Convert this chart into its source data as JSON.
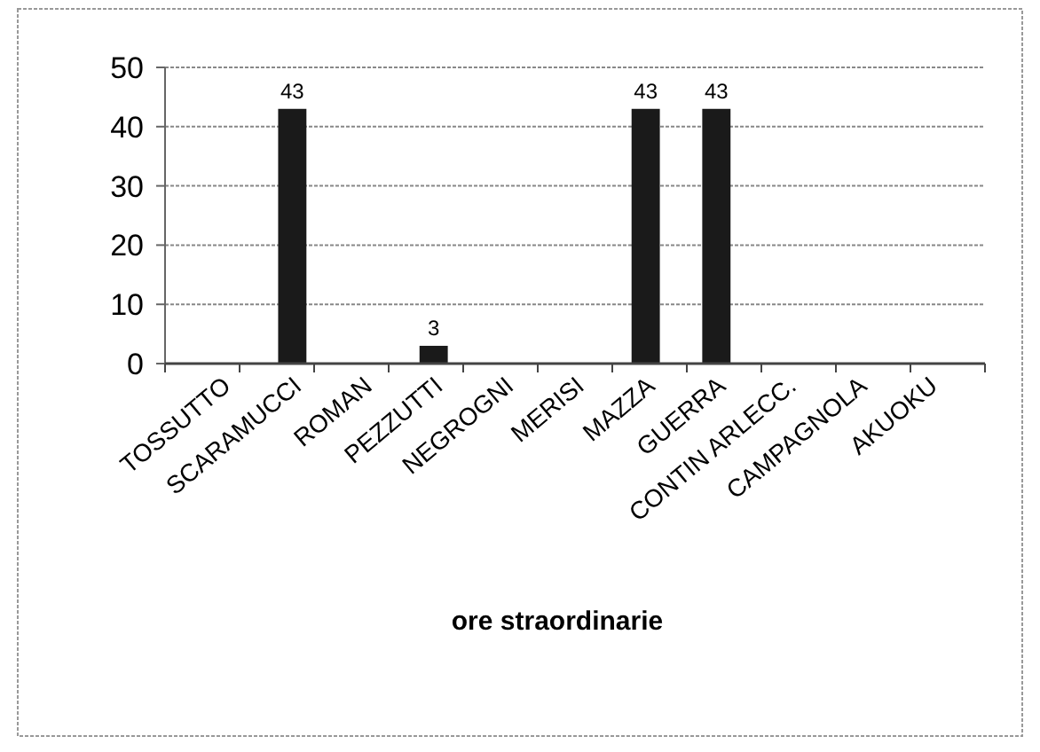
{
  "chart_data": {
    "type": "bar",
    "xlabel": "ore straordinarie",
    "categories": [
      "TOSSUTTO",
      "SCARAMUCCI",
      "ROMAN",
      "PEZZUTTI",
      "NEGROGNI",
      "MERISI",
      "MAZZA",
      "GUERRA",
      "CONTIN ARLECC.",
      "CAMPAGNOLA",
      "AKUOKU"
    ],
    "values": [
      0,
      43,
      0,
      3,
      0,
      0,
      43,
      43,
      0,
      0,
      0
    ],
    "value_labels": [
      null,
      "43",
      null,
      "3",
      null,
      null,
      "43",
      "43",
      null,
      null,
      null
    ],
    "color": "#1a1a1a",
    "ylim": [
      0,
      50
    ],
    "yticks": [
      0,
      10,
      20,
      30,
      40,
      50
    ],
    "grid": "y"
  }
}
